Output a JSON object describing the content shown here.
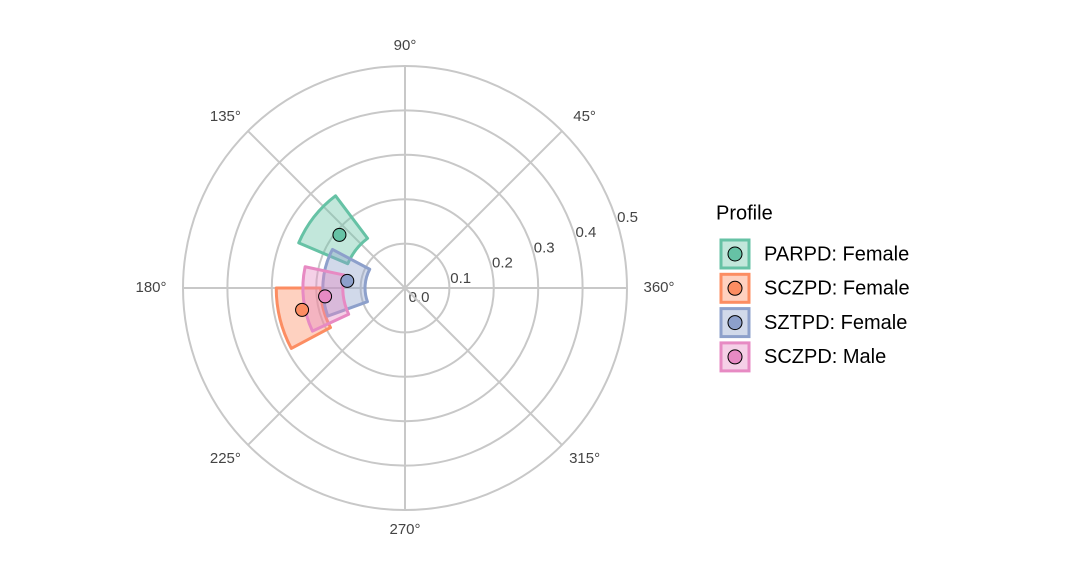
{
  "chart_data": {
    "type": "polar",
    "legend_title": "Profile",
    "rlim": [
      0,
      0.5
    ],
    "rticks": [
      {
        "value": 0,
        "label": "0.0"
      },
      0.1,
      0.2,
      0.3,
      0.4,
      0.5
    ],
    "angle_ticks": [
      {
        "value": 90,
        "label": "90°"
      },
      {
        "value": 45,
        "label": "45°"
      },
      {
        "value": 360,
        "label": "360°"
      },
      {
        "value": 315,
        "label": "315°"
      },
      {
        "value": 270,
        "label": "270°"
      },
      {
        "value": 225,
        "label": "225°"
      },
      {
        "value": 180,
        "label": "180°"
      },
      {
        "value": 135,
        "label": "135°"
      }
    ],
    "grid": true,
    "series": [
      {
        "name": "PARPD: Female",
        "color": "#66c2a5",
        "displacement": 141,
        "amplitude": 0.19,
        "displacement_ci": [
          127,
          157
        ],
        "amplitude_ci": [
          0.14,
          0.26
        ]
      },
      {
        "name": "SCZPD: Female",
        "color": "#fc8d62",
        "displacement": 192,
        "amplitude": 0.237,
        "displacement_ci": [
          180,
          208
        ],
        "amplitude_ci": [
          0.19,
          0.29
        ]
      },
      {
        "name": "SZTPD: Female",
        "color": "#8da0cb",
        "displacement": 173,
        "amplitude": 0.131,
        "displacement_ci": [
          152,
          200
        ],
        "amplitude_ci": [
          0.09,
          0.185
        ]
      },
      {
        "name": "SCZPD: Male",
        "color": "#e78ac3",
        "displacement": 186,
        "amplitude": 0.181,
        "displacement_ci": [
          168,
          205
        ],
        "amplitude_ci": [
          0.14,
          0.23
        ]
      }
    ]
  }
}
